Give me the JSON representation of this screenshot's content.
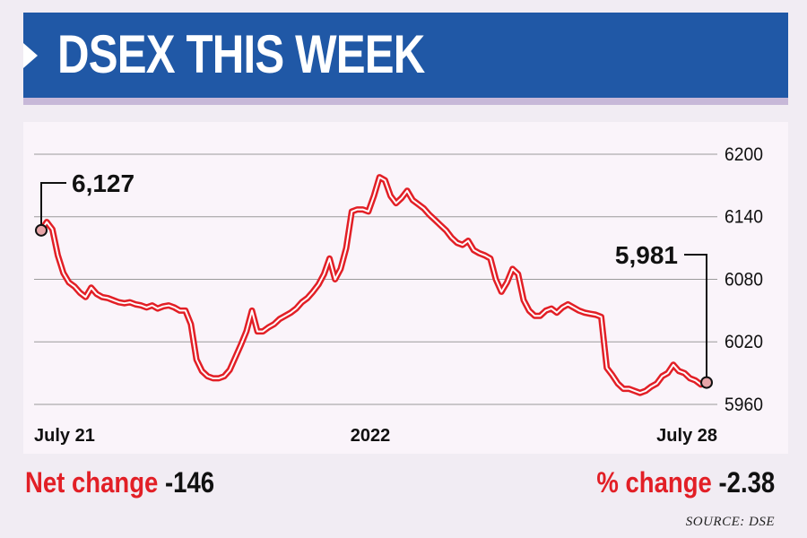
{
  "header": {
    "title": "DSEX THIS WEEK"
  },
  "chart_data": {
    "type": "line",
    "title": "DSEX THIS WEEK",
    "x_tick_labels": [
      "July 21",
      "2022",
      "July 28"
    ],
    "yticks": [
      5960,
      6020,
      6080,
      6140,
      6200
    ],
    "ylim": [
      5955,
      6210
    ],
    "grid": true,
    "series": [
      {
        "color": "#e21f26",
        "values": [
          6127,
          6135,
          6128,
          6103,
          6086,
          6077,
          6073,
          6067,
          6063,
          6072,
          6066,
          6063,
          6062,
          6060,
          6058,
          6057,
          6058,
          6056,
          6055,
          6053,
          6055,
          6052,
          6054,
          6055,
          6053,
          6050,
          6050,
          6037,
          6003,
          5992,
          5987,
          5985,
          5985,
          5987,
          5993,
          6005,
          6017,
          6030,
          6050,
          6030,
          6030,
          6034,
          6037,
          6042,
          6045,
          6048,
          6052,
          6058,
          6062,
          6068,
          6075,
          6085,
          6100,
          6080,
          6090,
          6110,
          6145,
          6147,
          6147,
          6145,
          6160,
          6178,
          6175,
          6160,
          6153,
          6158,
          6165,
          6156,
          6152,
          6148,
          6142,
          6137,
          6132,
          6127,
          6120,
          6115,
          6113,
          6117,
          6108,
          6105,
          6103,
          6100,
          6080,
          6068,
          6077,
          6090,
          6085,
          6060,
          6050,
          6045,
          6045,
          6050,
          6052,
          6048,
          6053,
          6056,
          6053,
          6050,
          6048,
          6047,
          6046,
          6044,
          5995,
          5988,
          5980,
          5975,
          5975,
          5973,
          5971,
          5973,
          5977,
          5980,
          5987,
          5990,
          5998,
          5992,
          5990,
          5985,
          5983,
          5979,
          5981
        ],
        "annotations": [
          {
            "text": "6,127",
            "value": 6127
          },
          {
            "text": "5,981",
            "value": 5981
          }
        ]
      }
    ]
  },
  "footer": {
    "net_label": "Net change",
    "net_value": "-146",
    "pct_label": "% change",
    "pct_value": "-2.38",
    "source": "SOURCE: DSE"
  },
  "colors": {
    "header_bg": "#2058a6",
    "line": "#e21f26",
    "grid": "#9a9a9a",
    "panel_bg": "#faf4fa",
    "page_bg": "#f1ecf3"
  }
}
